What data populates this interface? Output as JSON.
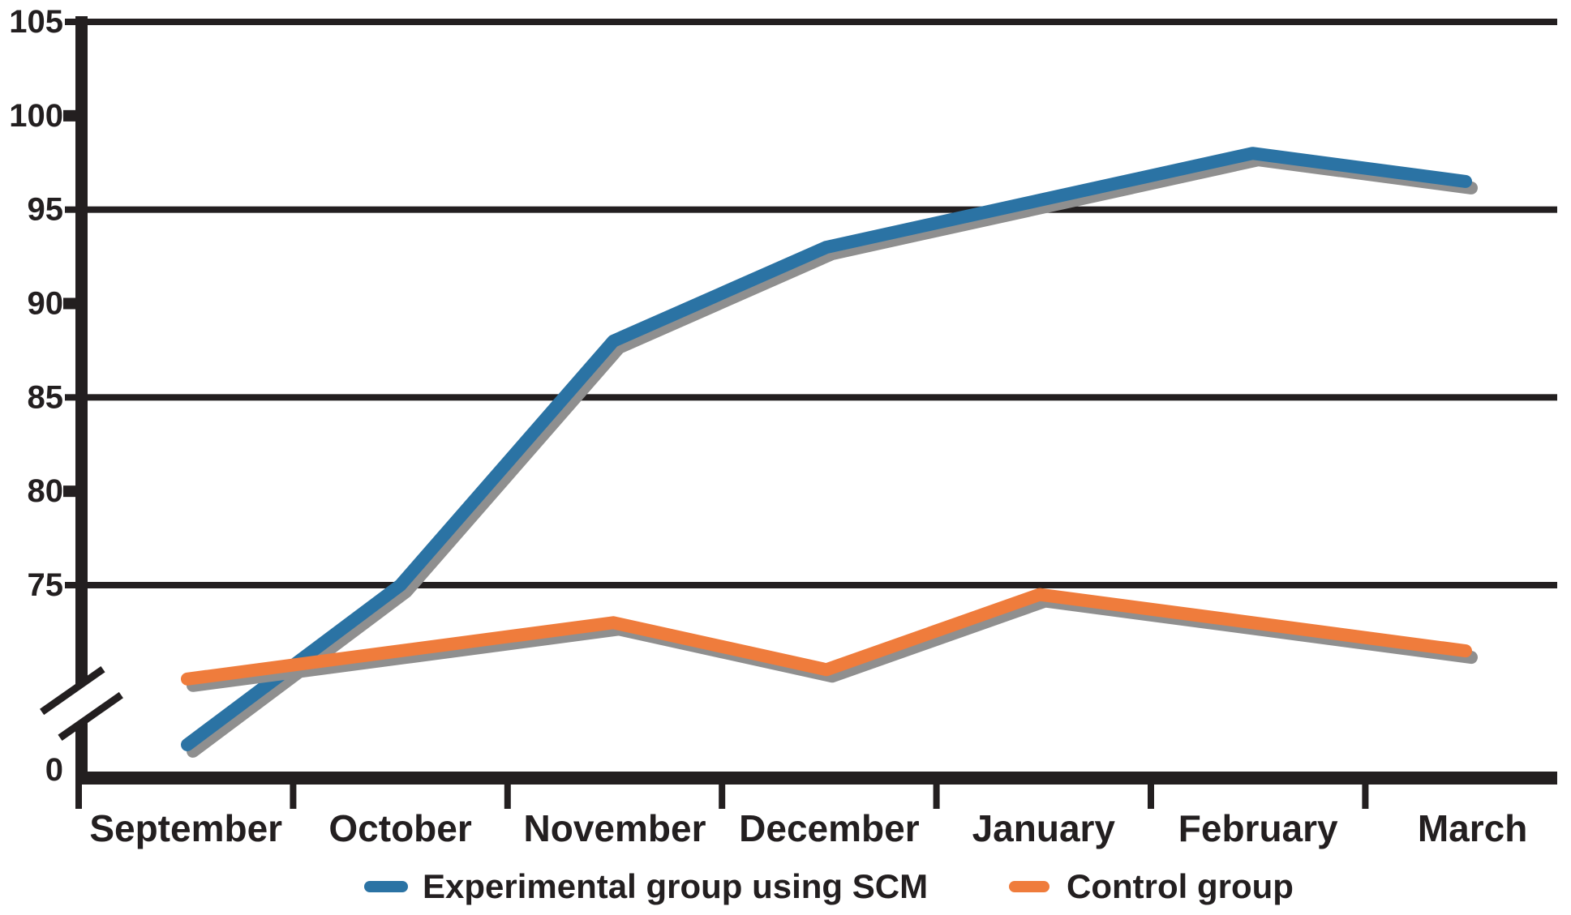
{
  "chart_data": {
    "type": "line",
    "title": "",
    "categories": [
      "September",
      "October",
      "November",
      "December",
      "January",
      "February",
      "March"
    ],
    "series": [
      {
        "name": "Experimental group using SCM",
        "color": "#2b73a4",
        "values": [
          66.5,
          75,
          88,
          93,
          95.5,
          98,
          96.5
        ]
      },
      {
        "name": "Control group",
        "color": "#ef7c3c",
        "values": [
          70,
          71.5,
          73,
          70.5,
          74.5,
          73,
          71.5
        ]
      }
    ],
    "y_axis": {
      "tick_labels": [
        "105",
        "100",
        "95",
        "90",
        "85",
        "80",
        "75"
      ],
      "tick_values": [
        105,
        100,
        95,
        90,
        85,
        80,
        75
      ],
      "gridline_values": [
        105,
        95,
        85,
        75
      ],
      "origin_label": "0",
      "axis_break": true,
      "ylim_visible": [
        75,
        105
      ]
    },
    "x_axis": {
      "tick_count": 8
    },
    "grid": "horizontal",
    "legend_position": "bottom"
  },
  "colors": {
    "axis": "#231f20",
    "gridline": "#231f20",
    "text": "#231f20",
    "shadow": "#8f8f8f",
    "background": "#ffffff",
    "series_blue": "#2b73a4",
    "series_orange": "#ef7c3c"
  }
}
